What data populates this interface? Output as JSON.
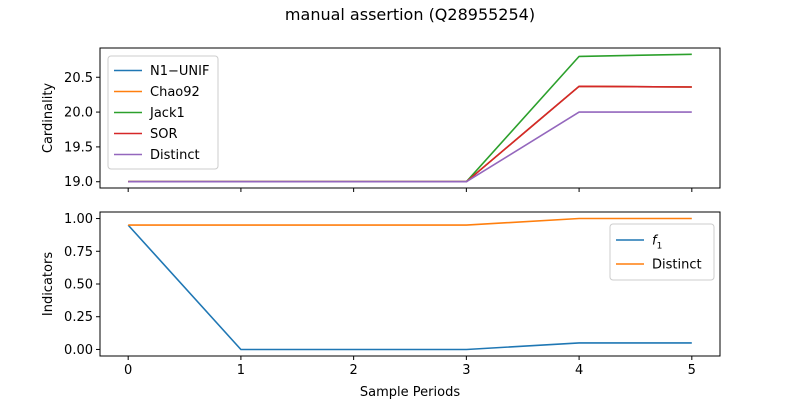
{
  "figure": {
    "title": "manual assertion (Q28955254)",
    "xlabel": "Sample Periods"
  },
  "chart_data": [
    {
      "type": "line",
      "title": "",
      "ylabel": "Cardinality",
      "x": [
        0,
        1,
        2,
        3,
        4,
        5
      ],
      "xlim": [
        -0.25,
        5.25
      ],
      "ylim": [
        18.91,
        20.92
      ],
      "yticks": [
        19.0,
        19.5,
        20.0,
        20.5
      ],
      "ytick_labels": [
        "19.0",
        "19.5",
        "20.0",
        "20.5"
      ],
      "legend_placement": "upper-left",
      "series": [
        {
          "name": "N1−UNIF",
          "color": "#1f77b4",
          "values": [
            19,
            19,
            19,
            19,
            20.37,
            20.36
          ]
        },
        {
          "name": "Chao92",
          "color": "#ff7f0e",
          "values": [
            19,
            19,
            19,
            19,
            20.37,
            20.36
          ]
        },
        {
          "name": "Jack1",
          "color": "#2ca02c",
          "values": [
            19,
            19,
            19,
            19,
            20.8,
            20.83
          ]
        },
        {
          "name": "SOR",
          "color": "#d62728",
          "values": [
            19,
            19,
            19,
            19,
            20.37,
            20.36
          ]
        },
        {
          "name": "Distinct",
          "color": "#9467bd",
          "values": [
            19,
            19,
            19,
            19,
            20.0,
            20.0
          ]
        }
      ]
    },
    {
      "type": "line",
      "title": "",
      "ylabel": "Indicators",
      "x": [
        0,
        1,
        2,
        3,
        4,
        5
      ],
      "xlim": [
        -0.25,
        5.25
      ],
      "ylim": [
        -0.05,
        1.05
      ],
      "yticks": [
        0.0,
        0.25,
        0.5,
        0.75,
        1.0
      ],
      "ytick_labels": [
        "0.00",
        "0.25",
        "0.50",
        "0.75",
        "1.00"
      ],
      "xticks": [
        0,
        1,
        2,
        3,
        4,
        5
      ],
      "xtick_labels": [
        "0",
        "1",
        "2",
        "3",
        "4",
        "5"
      ],
      "legend_placement": "upper-right",
      "series": [
        {
          "name": "f",
          "name_subscript": "1",
          "color": "#1f77b4",
          "values": [
            0.95,
            0.0,
            0.0,
            0.0,
            0.05,
            0.05
          ]
        },
        {
          "name": "Distinct",
          "color": "#ff7f0e",
          "values": [
            0.95,
            0.95,
            0.95,
            0.95,
            1.0,
            1.0
          ]
        }
      ]
    }
  ]
}
